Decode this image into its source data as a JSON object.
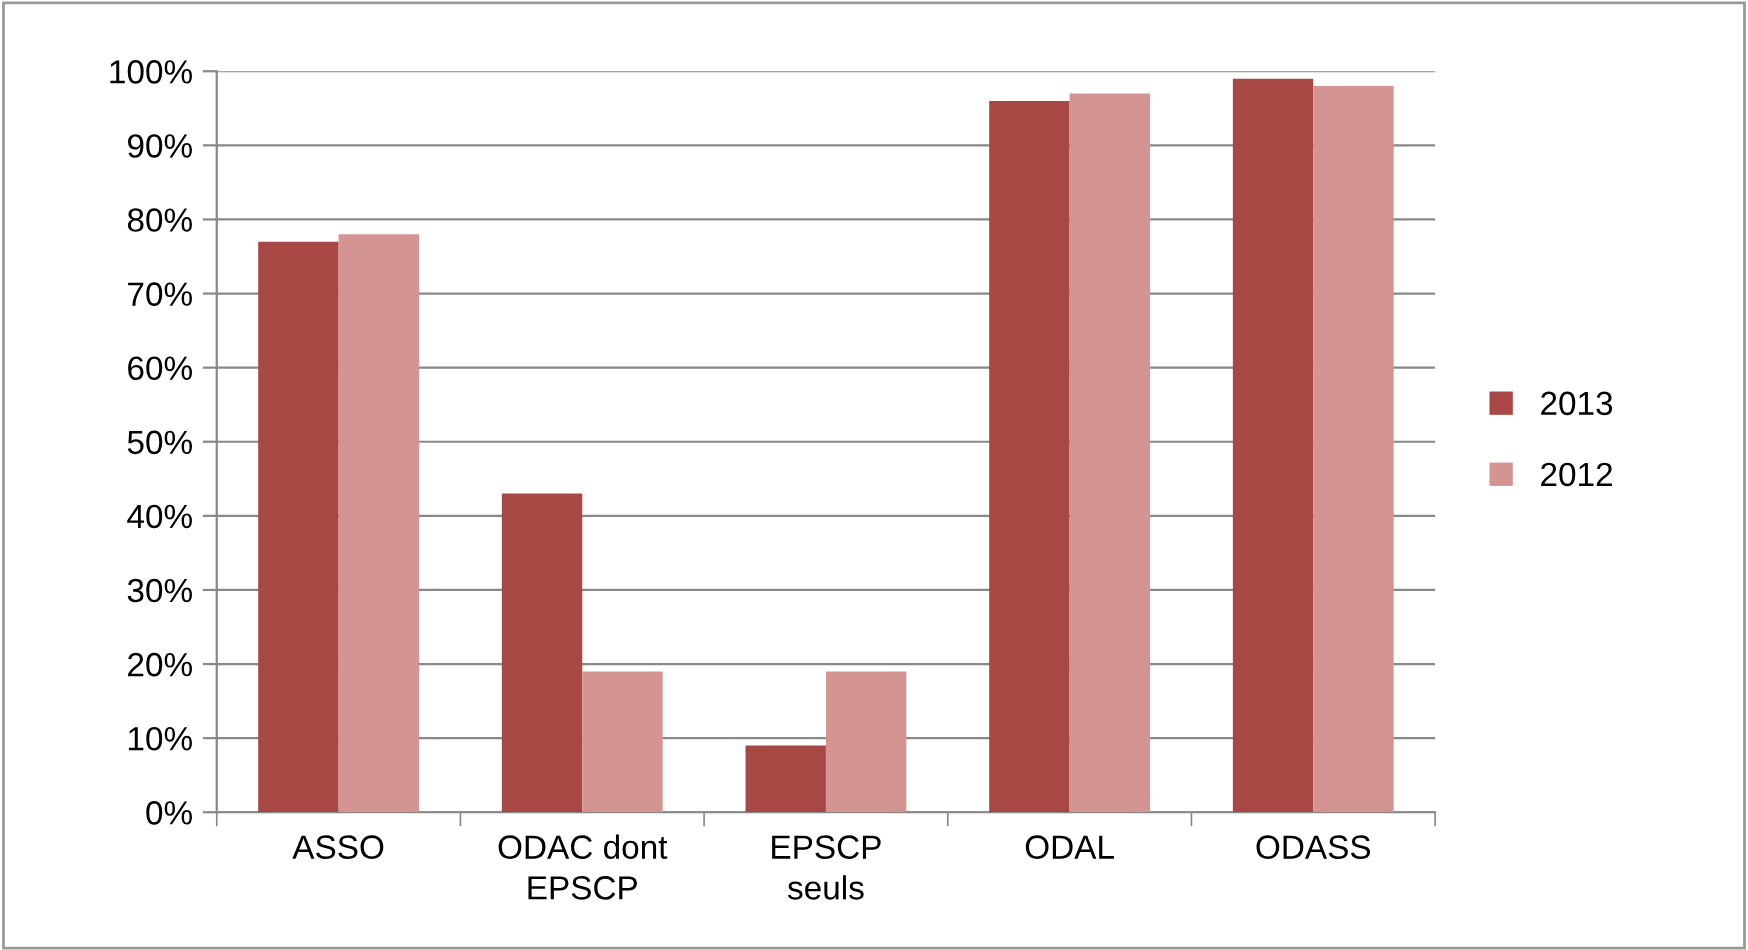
{
  "chart_data": {
    "type": "bar",
    "categories": [
      "ASSO",
      "ODAC dont\nEPSCP",
      "EPSCP\nseuls",
      "ODAL",
      "ODASS"
    ],
    "series": [
      {
        "name": "2013",
        "color": "#a84845",
        "values": [
          77,
          43,
          9,
          96,
          99
        ]
      },
      {
        "name": "2012",
        "color": "#d49592",
        "values": [
          78,
          19,
          19,
          97,
          98
        ]
      }
    ],
    "ylim": [
      0,
      100
    ],
    "yticks": [
      {
        "value": 0,
        "label": "0%"
      },
      {
        "value": 10,
        "label": "10%"
      },
      {
        "value": 20,
        "label": "20%"
      },
      {
        "value": 30,
        "label": "30%"
      },
      {
        "value": 40,
        "label": "40%"
      },
      {
        "value": 50,
        "label": "50%"
      },
      {
        "value": 60,
        "label": "60%"
      },
      {
        "value": 70,
        "label": "70%"
      },
      {
        "value": 80,
        "label": "80%"
      },
      {
        "value": 90,
        "label": "90%"
      },
      {
        "value": 100,
        "label": "100%"
      }
    ],
    "grid": "y",
    "legend": "right"
  }
}
